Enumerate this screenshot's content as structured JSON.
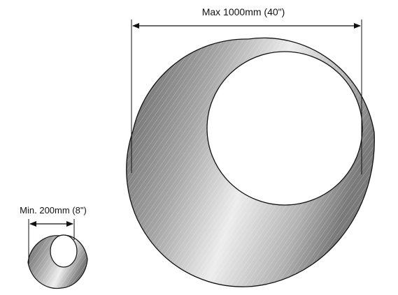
{
  "large_tube": {
    "dimension_label": "Max 1000mm (40\")"
  },
  "small_tube": {
    "dimension_label": "Min. 200mm (8\")"
  },
  "colors": {
    "line": "#111111",
    "shade_light": "#f2f2f2",
    "shade_mid": "#bdbdbd",
    "shade_dark": "#6e6e6e",
    "background": "#ffffff"
  }
}
